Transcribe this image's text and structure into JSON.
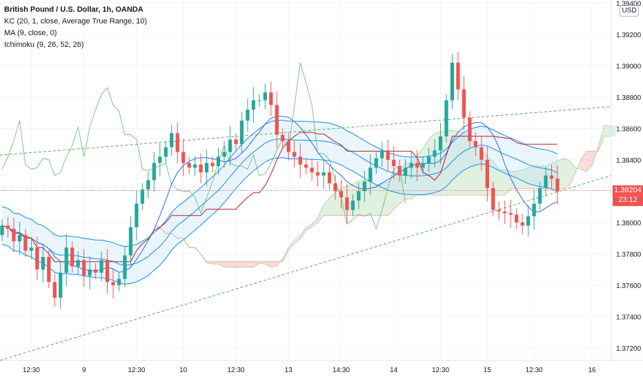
{
  "legend": {
    "title": "British Pound / U.S. Dollar, 1h, OANDA",
    "kc": "KC (20, 1, close, Average True Range, 10)",
    "ma": "MA (9, close, 0)",
    "ichimoku": "Ichimoku (9, 26, 52, 26)"
  },
  "currency_badge": "USD",
  "last_price_tag": {
    "price": "1.38204",
    "countdown": "23:12"
  },
  "colors": {
    "up": "#26a69a",
    "down": "#ef5350",
    "kc": "#2196f3",
    "ma": "#2962ff",
    "chikou": "#4caf50",
    "kijun": "#b71c1c",
    "cloud_bull": "#a5d6a7",
    "cloud_bear": "#ef9a9a",
    "trendline": "#4caf50"
  },
  "chart_data": {
    "type": "candlestick",
    "symbol": "GBPUSD",
    "timeframe": "1h",
    "y_ticks": [
      "1.39400",
      "1.39200",
      "1.39000",
      "1.38800",
      "1.38600",
      "1.38400",
      "1.38000",
      "1.37800",
      "1.37600",
      "1.37400",
      "1.37200"
    ],
    "x_ticks": [
      "12:30",
      "9",
      "12:30",
      "10",
      "12:30",
      "13",
      "14:30",
      "14",
      "12:30",
      "15",
      "12:30",
      "16"
    ],
    "ylim": [
      1.3712,
      1.3942
    ],
    "last_price": 1.38204,
    "closes": [
      1.3798,
      1.3796,
      1.3788,
      1.3792,
      1.3782,
      1.3784,
      1.377,
      1.3778,
      1.3762,
      1.3752,
      1.3768,
      1.3784,
      1.3772,
      1.3776,
      1.3766,
      1.377,
      1.3768,
      1.3776,
      1.3762,
      1.376,
      1.3764,
      1.3779,
      1.3797,
      1.3812,
      1.3821,
      1.3827,
      1.3838,
      1.3842,
      1.3848,
      1.3857,
      1.3845,
      1.3838,
      1.3835,
      1.3837,
      1.3832,
      1.3838,
      1.3836,
      1.3842,
      1.3845,
      1.3853,
      1.385,
      1.3865,
      1.3872,
      1.3878,
      1.3878,
      1.3883,
      1.3875,
      1.3856,
      1.3852,
      1.3845,
      1.3842,
      1.3837,
      1.3835,
      1.3832,
      1.383,
      1.3832,
      1.3825,
      1.382,
      1.3816,
      1.3808,
      1.3814,
      1.382,
      1.3826,
      1.3835,
      1.3841,
      1.3846,
      1.384,
      1.3836,
      1.383,
      1.3835,
      1.3838,
      1.3835,
      1.3838,
      1.3842,
      1.3846,
      1.3855,
      1.3878,
      1.3902,
      1.3885,
      1.3867,
      1.3852,
      1.3848,
      1.384,
      1.3822,
      1.3808,
      1.3807,
      1.3806,
      1.3805,
      1.38,
      1.3798,
      1.3804,
      1.3812,
      1.3822,
      1.383,
      1.3828,
      1.382
    ],
    "legend": [
      "KC (20, 1, close, Average True Range, 10)",
      "MA (9, close, 0)",
      "Ichimoku (9, 26, 52, 26)"
    ]
  }
}
